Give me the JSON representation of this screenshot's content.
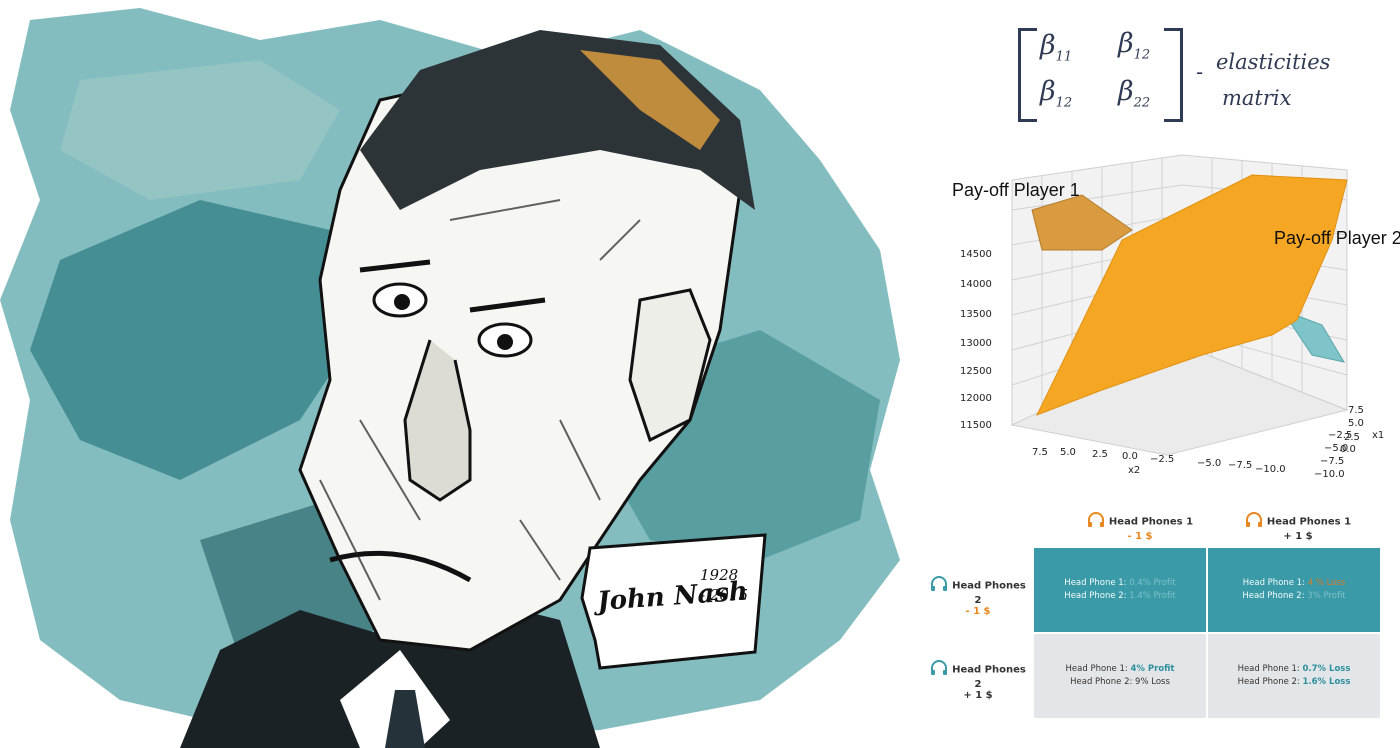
{
  "portrait": {
    "signature": "John Nash",
    "years_top": "1928",
    "years_bottom": "- 2015"
  },
  "matrix": {
    "b11": "β",
    "b11_sub": "11",
    "b12": "β",
    "b12_sub": "12",
    "b21": "β",
    "b21_sub": "12",
    "b22": "β",
    "b22_sub": "22",
    "dash": "-",
    "label_1": "elasticities",
    "label_2": "matrix"
  },
  "plot": {
    "label_player1": "Pay-off Player 1",
    "label_player2": "Pay-off Player 2",
    "z_ticks": [
      "14500",
      "14000",
      "13500",
      "13000",
      "12500",
      "12000",
      "11500"
    ],
    "x2_ticks": [
      "7.5",
      "5.0",
      "2.5",
      "0.0",
      "−2.5",
      "−5.0",
      "−7.5",
      "−10.0"
    ],
    "x1_ticks": [
      "7.5",
      "5.0",
      "2.5",
      "0.0",
      "−2.5",
      "−5.0",
      "−7.5",
      "−10.0"
    ],
    "x2_label": "x2",
    "x1_label": "x1",
    "colors": {
      "player2_surface": "#f5a623",
      "player1_surface": "#d99a40",
      "teal_surface": "#7ec4c8"
    }
  },
  "table": {
    "col1_title": "Head Phones 1",
    "col1_value": "- 1 $",
    "col2_title": "Head Phones 1",
    "col2_value": "+ 1 $",
    "row1_title": "Head Phones 2",
    "row1_value": "- 1 $",
    "row2_title": "Head Phones 2",
    "row2_value": "+ 1 $",
    "cells": [
      {
        "line1_label": "Head Phone 1:",
        "line1_value": "0.4% Profit",
        "line2_label": "Head Phone 2:",
        "line2_value": "1.4% Profit"
      },
      {
        "line1_label": "Head Phone 1:",
        "line1_value": "4 % Loss",
        "line2_label": "Head Phone 2:",
        "line2_value": "3% Profit"
      },
      {
        "line1_label": "Head Phone 1:",
        "line1_value": "4% Profit",
        "line2_label": "Head Phone 2:",
        "line2_value": "9% Loss"
      },
      {
        "line1_label": "Head Phone 1:",
        "line1_value": "0.7% Loss",
        "line2_label": "Head Phone 2:",
        "line2_value": "1.6% Loss"
      }
    ],
    "colors": {
      "teal_cell": "#3a9aa7",
      "grey_cell": "#e3e6e9",
      "accent_orange": "#e8871e"
    }
  }
}
